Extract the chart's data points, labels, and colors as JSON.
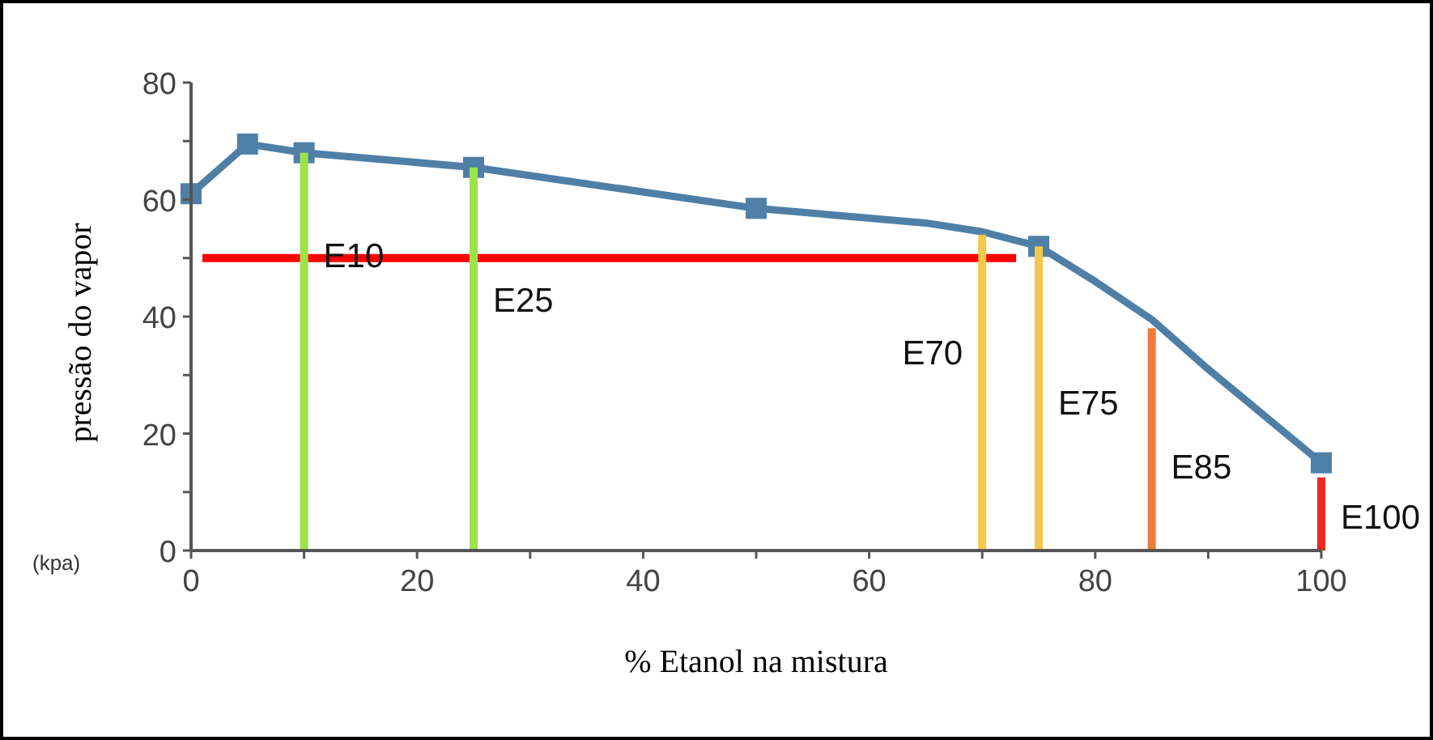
{
  "chart_data": {
    "type": "line",
    "xlabel": "% Etanol na mistura",
    "ylabel": "pressão do vapor",
    "xlim": [
      0,
      100
    ],
    "ylim": [
      0,
      80
    ],
    "xticks": [
      0,
      {
        "value": 10,
        "label": null
      },
      20,
      {
        "value": 30,
        "label": null
      },
      40,
      {
        "value": 50,
        "label": null
      },
      60,
      {
        "value": 70,
        "label": null
      },
      80,
      {
        "value": 90,
        "label": null
      },
      100
    ],
    "yticks": [
      0,
      {
        "value": 10,
        "label": null
      },
      20,
      {
        "value": 30,
        "label": null
      },
      40,
      {
        "value": 50,
        "label": null
      },
      60,
      {
        "value": 70,
        "label": null
      },
      80
    ],
    "series": [
      {
        "type": "bar",
        "x": [
          10,
          25,
          70,
          75,
          85,
          100
        ],
        "values": [
          68,
          65.5,
          54,
          52,
          38,
          12.5
        ],
        "colors": [
          "#9be34a",
          "#9be34a",
          "#f2c94c",
          "#f2c94c",
          "#f07a3a",
          "#ee2a1e"
        ]
      },
      {
        "color": "#4f7fa6",
        "marker": "none",
        "x": [
          0,
          5,
          10,
          25,
          50,
          65,
          70,
          75,
          80,
          85,
          90,
          100
        ],
        "values": [
          61,
          69.5,
          68,
          65.5,
          58.5,
          56,
          54.5,
          52,
          46,
          39.5,
          31,
          15
        ]
      },
      {
        "type": "scatter",
        "color": "#4f7fa6",
        "marker": "square",
        "x": [
          0,
          5,
          10,
          25,
          50,
          75,
          100
        ],
        "values": [
          61,
          69.5,
          68,
          65.5,
          58.5,
          52,
          15
        ]
      },
      {
        "color": "#ff0000",
        "marker": "none",
        "x": [
          1,
          73
        ],
        "values": [
          50,
          50
        ]
      }
    ],
    "annotations": [
      {
        "text": "E10",
        "x": 10,
        "y": 50.7
      },
      {
        "text": "E25",
        "x": 25,
        "y": 43
      },
      {
        "text": "E70",
        "x": 70,
        "y": 34
      },
      {
        "text": "E75",
        "x": 75,
        "y": 25.5
      },
      {
        "text": "E85",
        "x": 85,
        "y": 14.5
      },
      {
        "text": "E100",
        "x": 100,
        "y": 6
      },
      "(kpa)"
    ]
  }
}
